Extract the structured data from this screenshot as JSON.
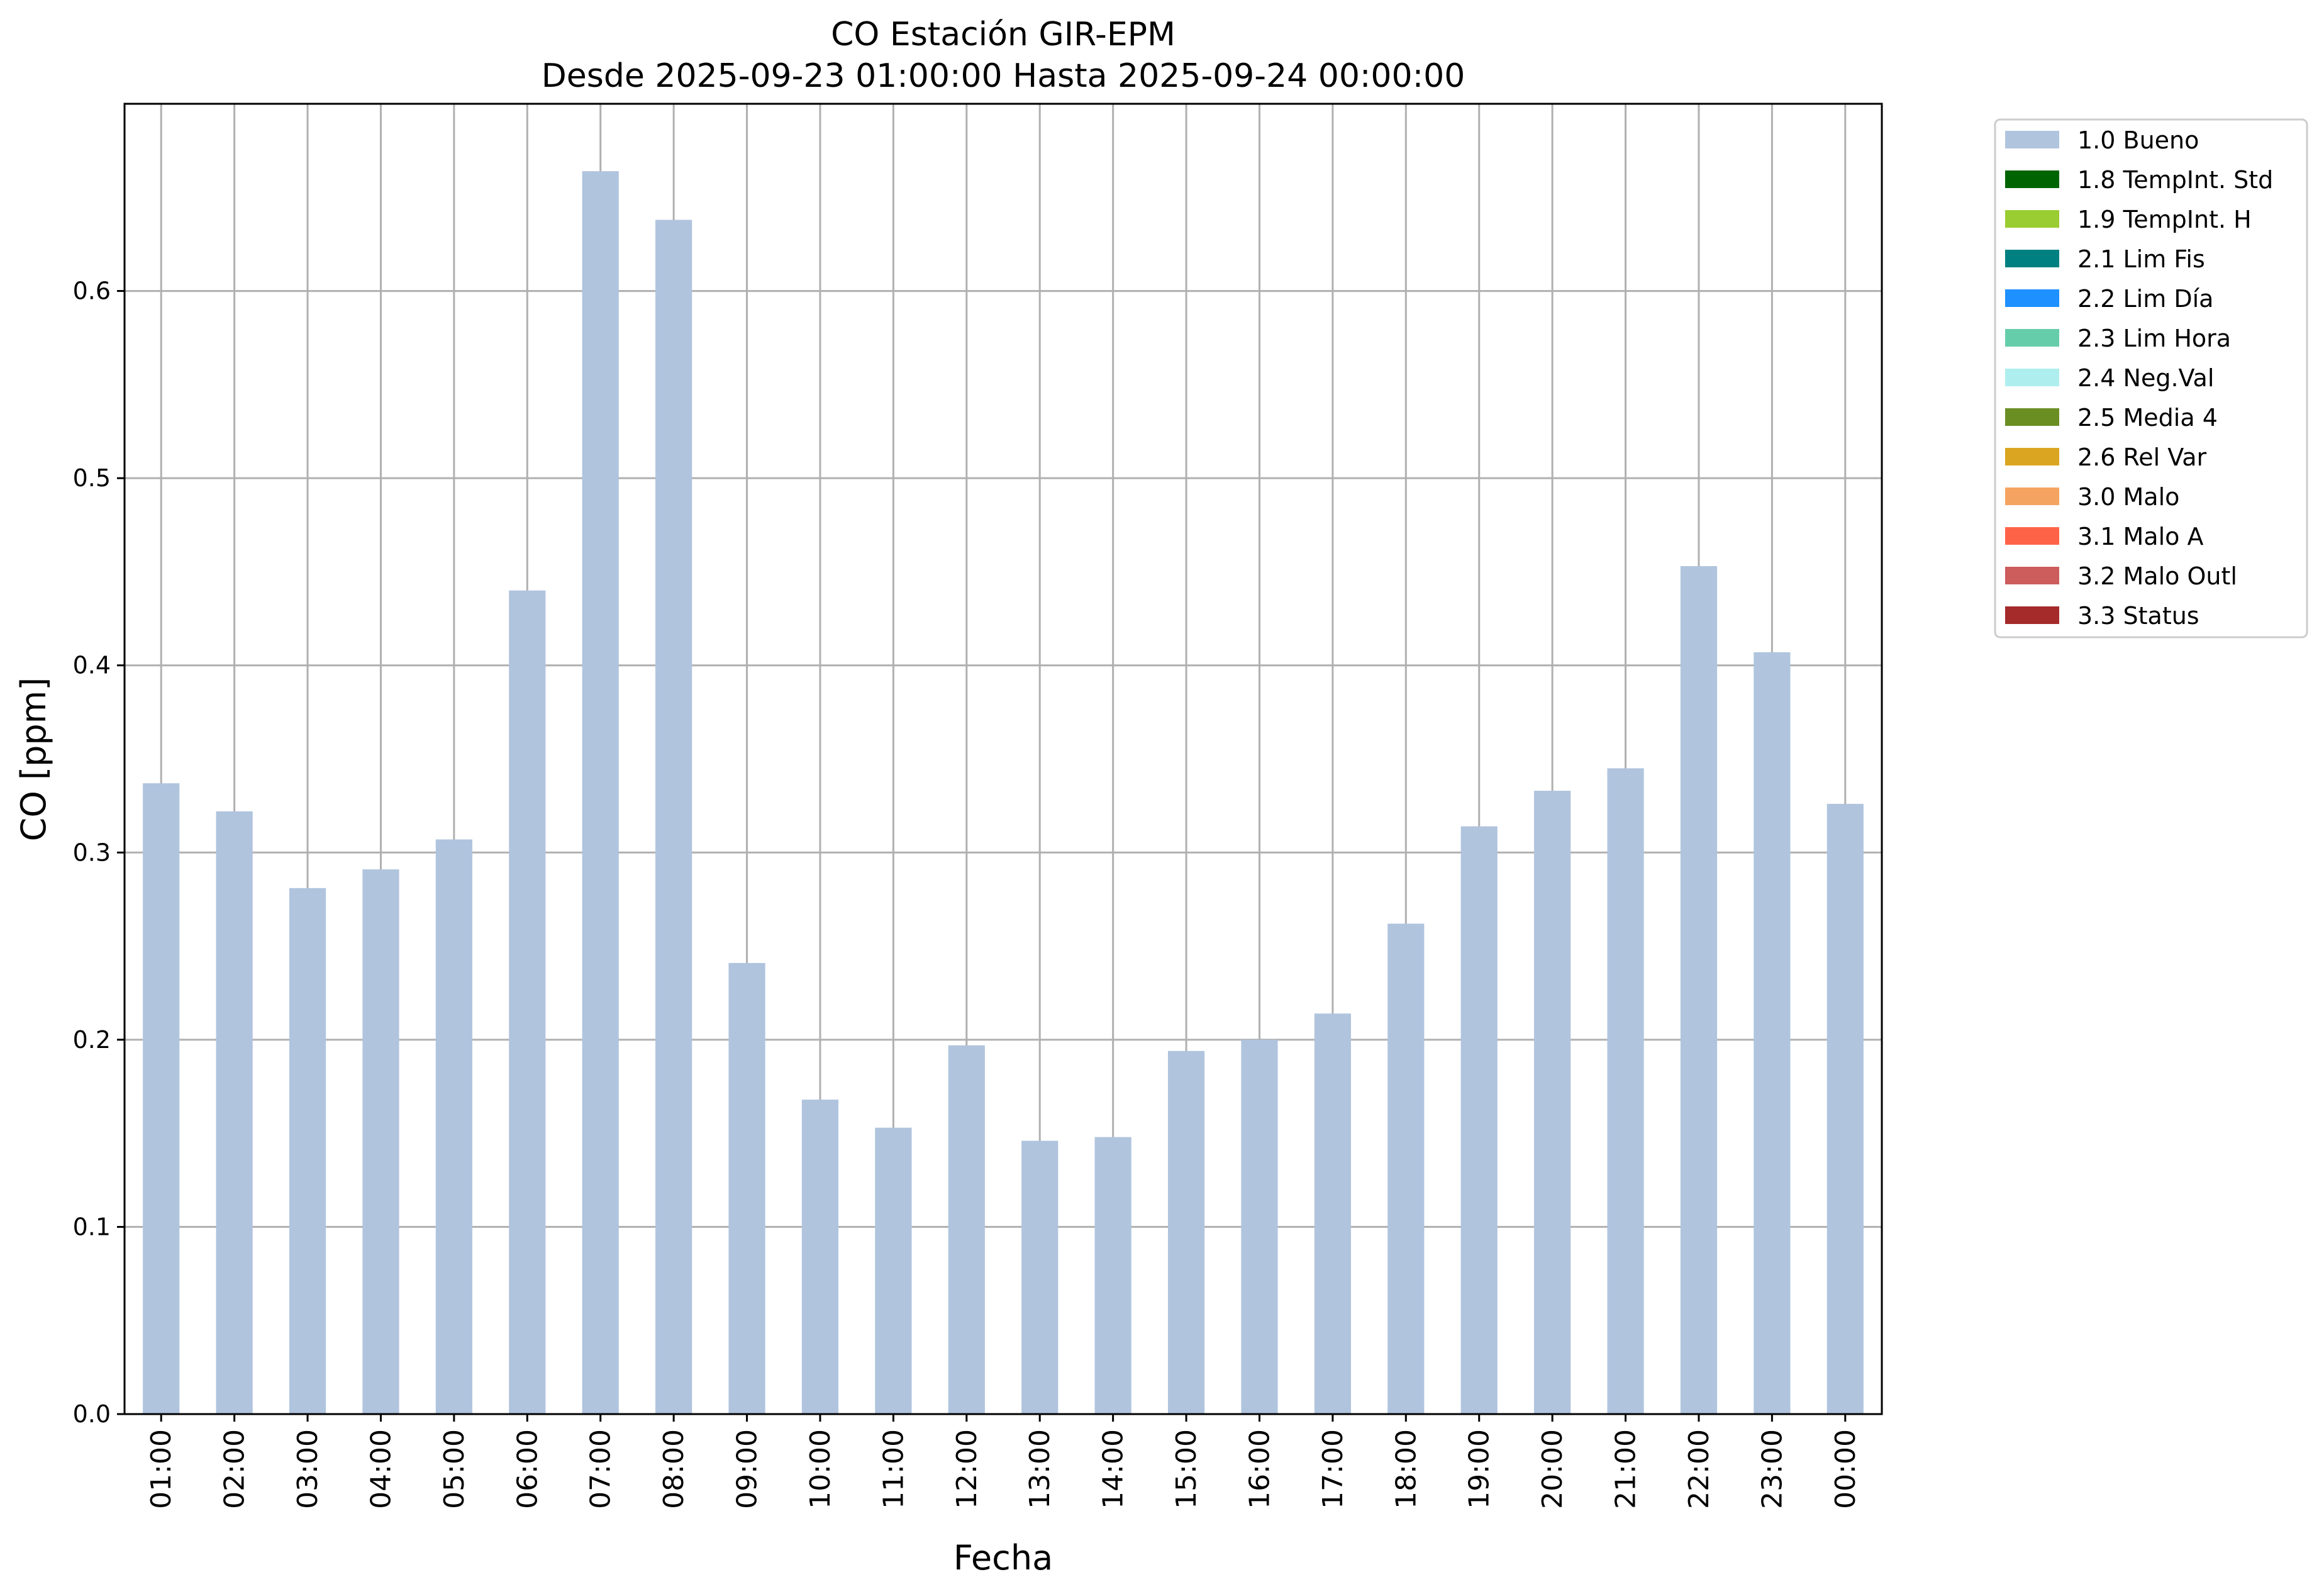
{
  "chart_data": {
    "type": "bar",
    "title": "CO Estación GIR-EPM",
    "subtitle": "Desde 2025-09-23 01:00:00 Hasta 2025-09-24 00:00:00",
    "xlabel": "Fecha",
    "ylabel": "CO [ppm]",
    "ylim": [
      0,
      0.7
    ],
    "yticks": [
      "0.0",
      "0.1",
      "0.2",
      "0.3",
      "0.4",
      "0.5",
      "0.6"
    ],
    "grid": true,
    "legend_position": "outside-top-right",
    "categories": [
      "01:00",
      "02:00",
      "03:00",
      "04:00",
      "05:00",
      "06:00",
      "07:00",
      "08:00",
      "09:00",
      "10:00",
      "11:00",
      "12:00",
      "13:00",
      "14:00",
      "15:00",
      "16:00",
      "17:00",
      "18:00",
      "19:00",
      "20:00",
      "21:00",
      "22:00",
      "23:00",
      "00:00"
    ],
    "series": [
      {
        "name": "1.0 Bueno",
        "color": "#b0c4de",
        "values": [
          0.337,
          0.322,
          0.281,
          0.291,
          0.307,
          0.44,
          0.664,
          0.638,
          0.241,
          0.168,
          0.153,
          0.197,
          0.146,
          0.148,
          0.194,
          0.2,
          0.214,
          0.262,
          0.314,
          0.333,
          0.345,
          0.453,
          0.407,
          0.326
        ]
      }
    ],
    "legend": [
      {
        "label": "1.0 Bueno",
        "color": "#b0c4de"
      },
      {
        "label": "1.8 TempInt. Std",
        "color": "#006400"
      },
      {
        "label": "1.9 TempInt. H",
        "color": "#9acd32"
      },
      {
        "label": "2.1 Lim Fis",
        "color": "#008080"
      },
      {
        "label": "2.2 Lim Día",
        "color": "#1e90ff"
      },
      {
        "label": "2.3 Lim Hora",
        "color": "#66cdaa"
      },
      {
        "label": "2.4 Neg.Val",
        "color": "#afeeee"
      },
      {
        "label": "2.5 Media 4",
        "color": "#6b8e23"
      },
      {
        "label": "2.6 Rel Var",
        "color": "#daa520"
      },
      {
        "label": "3.0 Malo",
        "color": "#f4a460"
      },
      {
        "label": "3.1 Malo A",
        "color": "#ff6347"
      },
      {
        "label": "3.2 Malo Outl",
        "color": "#cd5c5c"
      },
      {
        "label": "3.3 Status",
        "color": "#a52a2a"
      }
    ]
  }
}
